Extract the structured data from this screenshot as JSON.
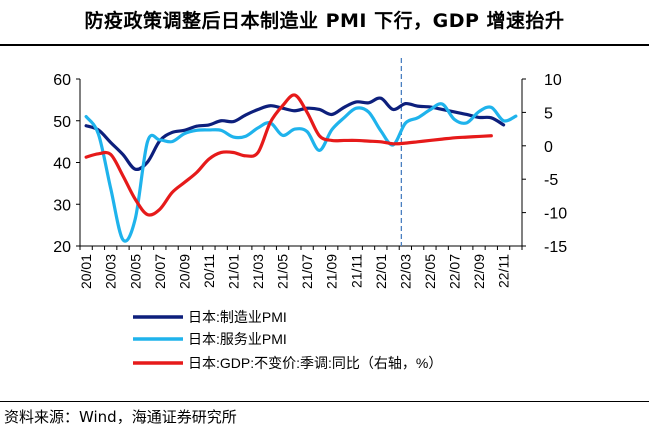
{
  "title": "防疫政策调整后日本制造业 PMI 下行，GDP 增速抬升",
  "source": "资料来源：Wind，海通证券研究所",
  "colors": {
    "manufacturing": "#0d1f7c",
    "services": "#1fb3ec",
    "gdp": "#e61a1a",
    "divider": "#4a7fc1"
  },
  "chart_data": {
    "type": "line",
    "x": [
      "20/01",
      "20/02",
      "20/03",
      "20/04",
      "20/05",
      "20/06",
      "20/07",
      "20/08",
      "20/09",
      "20/10",
      "20/11",
      "20/12",
      "21/01",
      "21/02",
      "21/03",
      "21/04",
      "21/05",
      "21/06",
      "21/07",
      "21/08",
      "21/09",
      "21/10",
      "21/11",
      "21/12",
      "22/01",
      "22/02",
      "22/03",
      "22/04",
      "22/05",
      "22/06",
      "22/07",
      "22/08",
      "22/09",
      "22/10",
      "22/11",
      "22/12"
    ],
    "tick_labels": [
      "20/01",
      "20/03",
      "20/05",
      "20/07",
      "20/09",
      "20/11",
      "21/01",
      "21/03",
      "21/05",
      "21/07",
      "21/09",
      "21/11",
      "22/01",
      "22/03",
      "22/05",
      "22/07",
      "22/09",
      "22/11"
    ],
    "left_axis": {
      "min": 20,
      "max": 60,
      "ticks": [
        "20",
        "30",
        "40",
        "50",
        "60"
      ]
    },
    "right_axis": {
      "min": -15,
      "max": 10,
      "ticks": [
        "-15",
        "-10",
        "-5",
        "0",
        "5",
        "10"
      ]
    },
    "divider_at": "22/03",
    "series": [
      {
        "name": "日本:制造业PMI",
        "axis": "left",
        "values": [
          48.8,
          47.8,
          44.8,
          41.9,
          38.4,
          40.1,
          45.2,
          47.2,
          47.7,
          48.7,
          49.0,
          50.0,
          49.8,
          51.4,
          52.7,
          53.6,
          53.0,
          52.4,
          53.0,
          52.7,
          51.5,
          53.2,
          54.5,
          54.3,
          55.4,
          52.7,
          54.1,
          53.5,
          53.3,
          52.7,
          52.1,
          51.5,
          50.8,
          50.7,
          49.0,
          null
        ]
      },
      {
        "name": "日本:服务业PMI",
        "axis": "left",
        "values": [
          51.0,
          46.8,
          33.8,
          21.5,
          26.5,
          45.0,
          45.4,
          45.0,
          46.9,
          47.7,
          47.8,
          47.7,
          46.1,
          46.3,
          48.3,
          49.5,
          46.5,
          48.0,
          47.4,
          42.9,
          47.8,
          50.7,
          53.0,
          52.1,
          47.6,
          44.2,
          49.4,
          50.7,
          52.6,
          54.0,
          50.3,
          49.5,
          52.2,
          53.2,
          50.0,
          51.1
        ]
      },
      {
        "name": "日本:GDP:不变价:季调:同比（右轴，%）",
        "axis": "right",
        "values": [
          -1.7,
          -1.2,
          -1.3,
          -4.5,
          -8.0,
          -10.3,
          -9.5,
          -7.0,
          -5.5,
          -4.0,
          -2.0,
          -1.0,
          -1.0,
          -1.5,
          -1.0,
          3.5,
          6.0,
          7.6,
          5.0,
          1.5,
          0.8,
          0.8,
          0.8,
          0.7,
          0.6,
          0.3,
          0.4,
          0.6,
          0.8,
          1.0,
          1.2,
          1.3,
          1.4,
          1.5,
          null,
          null
        ]
      }
    ]
  }
}
